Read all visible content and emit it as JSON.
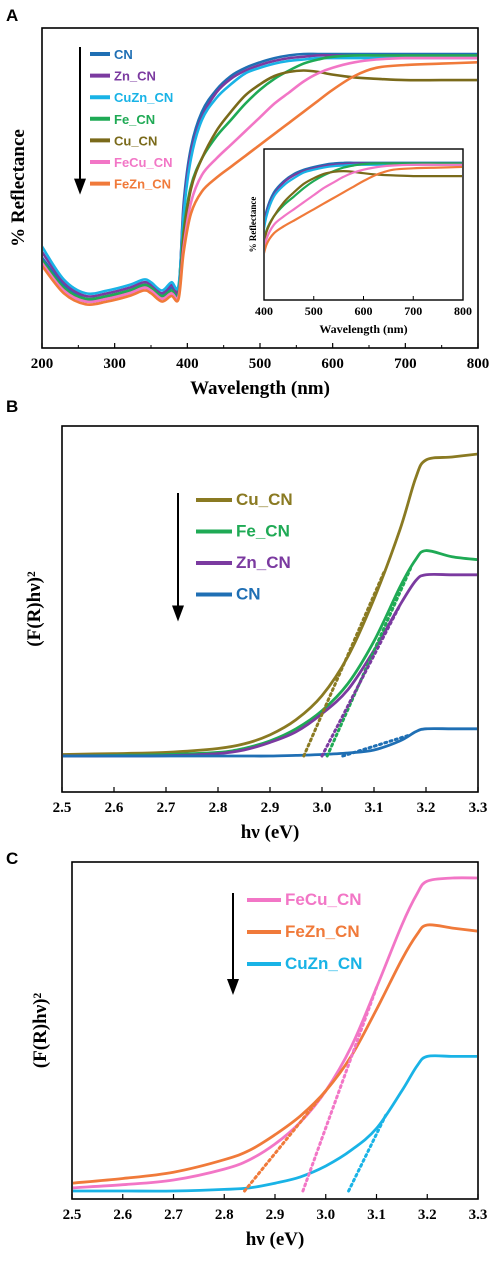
{
  "chart_data": [
    {
      "panel": "A",
      "type": "line",
      "xlabel": "Wavelength (nm)",
      "ylabel": "% Reflectance",
      "xlim": [
        200,
        800
      ],
      "ylim": [
        0,
        100
      ],
      "xticks": [
        200,
        300,
        400,
        500,
        600,
        700,
        800
      ],
      "x": [
        200,
        230,
        260,
        290,
        320,
        340,
        350,
        365,
        378,
        388,
        395,
        405,
        420,
        440,
        460,
        480,
        500,
        520,
        540,
        560,
        580,
        600,
        630,
        660,
        700,
        750,
        800
      ],
      "series": [
        {
          "name": "CN",
          "color": "#1f6fb4",
          "values": [
            22,
            12,
            7,
            8,
            10,
            12,
            11,
            8,
            11,
            10,
            42,
            62,
            75,
            83,
            88,
            91,
            93,
            94.5,
            95.5,
            96,
            96,
            96,
            96,
            96,
            96,
            96,
            96
          ]
        },
        {
          "name": "Zn_CN",
          "color": "#7b3aa0",
          "values": [
            24,
            13,
            8,
            9,
            11,
            13,
            12,
            9,
            12,
            11,
            40,
            60,
            73,
            82,
            87,
            90,
            92,
            93.5,
            94.5,
            95,
            95.5,
            95.5,
            95.5,
            95.5,
            95.5,
            95.5,
            95.5
          ]
        },
        {
          "name": "CuZn_CN",
          "color": "#19b3e6",
          "values": [
            26,
            14,
            9,
            10,
            12,
            14,
            13,
            10,
            13,
            12,
            38,
            58,
            72,
            80,
            85,
            89,
            91,
            92.5,
            93.5,
            94,
            94.5,
            94.5,
            94.5,
            94.5,
            94.5,
            94.5,
            94.5
          ]
        },
        {
          "name": "Fe_CN",
          "color": "#1faa55",
          "values": [
            21,
            11,
            7,
            8,
            10,
            12,
            11,
            8,
            10,
            9,
            32,
            48,
            58,
            66,
            72,
            78,
            83,
            87,
            90,
            92.5,
            94,
            95,
            95.5,
            95.5,
            95.5,
            95.5,
            95.5
          ]
        },
        {
          "name": "Cu_CN",
          "color": "#7a6a1a",
          "values": [
            20,
            10,
            6,
            7,
            9,
            11,
            10,
            7,
            9,
            8,
            30,
            47,
            58,
            68,
            75,
            81,
            85,
            88,
            89.5,
            90,
            89.5,
            88.5,
            87.5,
            87,
            86.5,
            86.5,
            86.5
          ]
        },
        {
          "name": "FeCu_CN",
          "color": "#f276c6",
          "values": [
            20,
            10,
            6,
            7,
            9,
            11,
            10,
            7,
            9,
            8,
            26,
            42,
            52,
            58,
            63,
            68,
            73,
            78,
            82,
            86,
            89,
            91,
            93,
            94,
            94.5,
            94.5,
            94.5
          ]
        },
        {
          "name": "FeZn_CN",
          "color": "#f07a3a",
          "values": [
            19,
            9,
            5,
            6,
            8,
            10,
            9,
            6,
            8,
            7,
            24,
            38,
            46,
            51,
            55,
            59,
            63,
            67,
            71,
            75,
            79,
            83,
            88,
            91,
            92,
            92.5,
            93
          ]
        }
      ],
      "inset": {
        "xlabel": "Wavelength (nm)",
        "ylabel": "% Reflectance",
        "xlim": [
          400,
          800
        ],
        "xticks": [
          400,
          500,
          600,
          700,
          800
        ]
      }
    },
    {
      "panel": "B",
      "type": "line",
      "xlabel": "hν (eV)",
      "ylabel": "(F(R)hν)²",
      "xlim": [
        2.5,
        3.3
      ],
      "ylim": [
        0,
        100
      ],
      "xticks": [
        2.5,
        2.6,
        2.7,
        2.8,
        2.9,
        3.0,
        3.1,
        3.2,
        3.3
      ],
      "x": [
        2.5,
        2.6,
        2.7,
        2.8,
        2.85,
        2.9,
        2.95,
        3.0,
        3.05,
        3.1,
        3.15,
        3.18,
        3.2,
        3.25,
        3.3
      ],
      "series": [
        {
          "name": "Cu_CN",
          "color": "#8a7a22",
          "values": [
            0.5,
            0.8,
            1.2,
            2.5,
            4,
            7,
            12,
            20,
            33,
            52,
            75,
            92,
            98,
            99,
            100
          ]
        },
        {
          "name": "Fe_CN",
          "color": "#1faa55",
          "values": [
            0,
            0.2,
            0.5,
            1.2,
            2.5,
            5,
            9,
            15,
            24,
            38,
            56,
            65,
            68,
            66,
            65
          ]
        },
        {
          "name": "Zn_CN",
          "color": "#7b3aa0",
          "values": [
            0,
            0,
            0.1,
            0.8,
            2,
            4.5,
            8,
            14,
            22,
            35,
            50,
            58,
            60,
            60,
            60
          ]
        },
        {
          "name": "CN",
          "color": "#1f6fb4",
          "values": [
            0,
            0,
            0,
            0,
            0,
            0,
            0.2,
            0.5,
            1,
            2,
            5,
            8,
            9,
            9,
            9
          ]
        }
      ],
      "tangents": [
        {
          "series": "Cu_CN",
          "x": [
            2.965,
            3.12
          ]
        },
        {
          "series": "Fe_CN",
          "x": [
            3.01,
            3.17
          ]
        },
        {
          "series": "Zn_CN",
          "x": [
            3.0,
            3.15
          ]
        },
        {
          "series": "CN",
          "x": [
            3.04,
            3.17
          ]
        }
      ]
    },
    {
      "panel": "C",
      "type": "line",
      "xlabel": "hν (eV)",
      "ylabel": "(F(R)hν)²",
      "xlim": [
        2.5,
        3.3
      ],
      "ylim": [
        0,
        100
      ],
      "xticks": [
        2.5,
        2.6,
        2.7,
        2.8,
        2.9,
        3.0,
        3.1,
        3.2,
        3.3
      ],
      "x": [
        2.5,
        2.6,
        2.7,
        2.8,
        2.85,
        2.9,
        2.95,
        3.0,
        3.05,
        3.1,
        3.15,
        3.18,
        3.2,
        3.25,
        3.3
      ],
      "series": [
        {
          "name": "FeCu_CN",
          "color": "#f276c6",
          "values": [
            1,
            2,
            3.5,
            7,
            10,
            15,
            22,
            32,
            46,
            65,
            85,
            95,
            99,
            100,
            100
          ]
        },
        {
          "name": "FeZn_CN",
          "color": "#f07a3a",
          "values": [
            2.5,
            4,
            6,
            10,
            13,
            18,
            24,
            32,
            43,
            58,
            74,
            82,
            85,
            84,
            83
          ]
        },
        {
          "name": "CuZn_CN",
          "color": "#19b3e6",
          "values": [
            0,
            0,
            0,
            0.5,
            1,
            2.5,
            4.5,
            8,
            13,
            20,
            32,
            40,
            43,
            43,
            43
          ]
        }
      ],
      "tangents": [
        {
          "series": "FeZn_CN",
          "x": [
            2.84,
            3.0
          ]
        },
        {
          "series": "FeCu_CN",
          "x": [
            2.955,
            3.1
          ]
        },
        {
          "series": "CuZn_CN",
          "x": [
            3.045,
            3.12
          ]
        }
      ]
    }
  ],
  "panel_labels": [
    "A",
    "B",
    "C"
  ]
}
